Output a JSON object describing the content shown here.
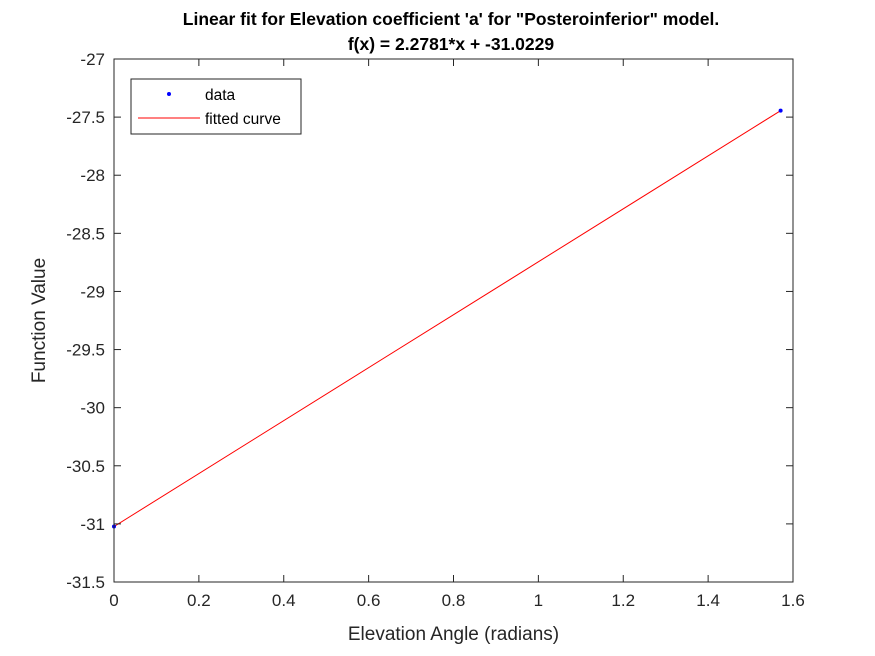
{
  "chart_data": {
    "type": "line",
    "title": "Linear fit for Elevation coefficient 'a' for \"Posteroinferior\" model.",
    "subtitle": "f(x) = 2.2781*x + -31.0229",
    "xlabel": "Elevation Angle (radians)",
    "ylabel": "Function Value",
    "xlim": [
      0,
      1.6
    ],
    "ylim": [
      -31.5,
      -27
    ],
    "xticks": [
      0,
      0.2,
      0.4,
      0.6,
      0.8,
      1,
      1.2,
      1.4,
      1.6
    ],
    "xtick_labels": [
      "0",
      "0.2",
      "0.4",
      "0.6",
      "0.8",
      "1",
      "1.2",
      "1.4",
      "1.6"
    ],
    "yticks": [
      -31.5,
      -31,
      -30.5,
      -30,
      -29.5,
      -29,
      -28.5,
      -28,
      -27.5,
      -27
    ],
    "ytick_labels": [
      "-31.5",
      "-31",
      "-30.5",
      "-30",
      "-29.5",
      "-29",
      "-28.5",
      "-28",
      "-27.5",
      "-27"
    ],
    "grid": false,
    "legend_position": "top-left",
    "series": [
      {
        "name": "data",
        "kind": "scatter",
        "color": "#0000ff",
        "x": [
          0,
          1.5708
        ],
        "y": [
          -31.0229,
          -27.4444
        ]
      },
      {
        "name": "fitted curve",
        "kind": "line",
        "color": "#ff0000",
        "x": [
          0,
          1.5708
        ],
        "y": [
          -31.0229,
          -27.4444
        ]
      }
    ]
  }
}
